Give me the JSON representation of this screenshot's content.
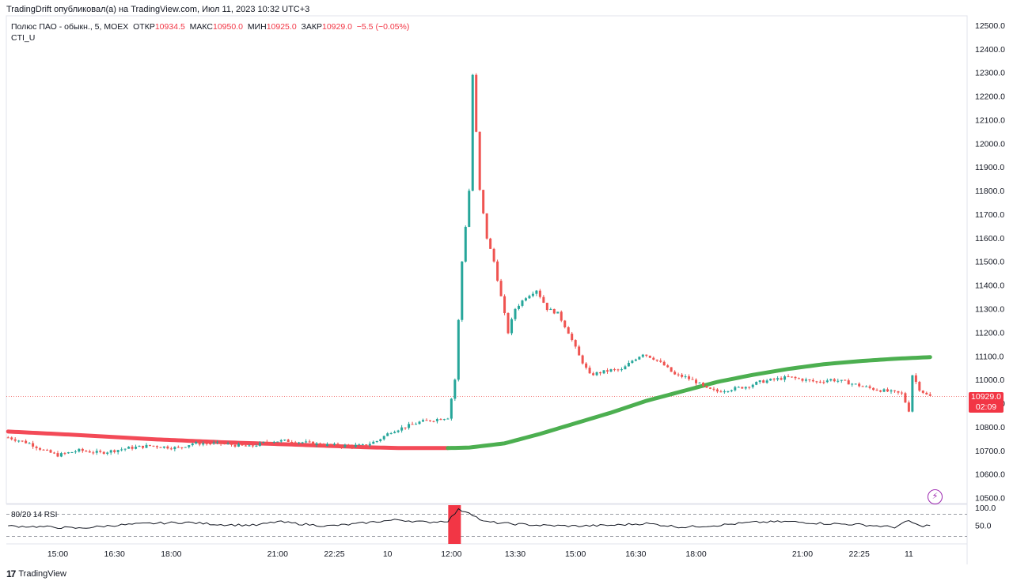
{
  "header": {
    "published": "TradingDrift опубликовал(а) на TradingView.com, Июл 11, 2023 10:32 UTC+3"
  },
  "legend": {
    "symbol": "Полюс ПАО - обыкн., 5, MOEX",
    "open_label": "ОТКР",
    "open_value": "10934.5",
    "high_label": "МАКС",
    "high_value": "10950.0",
    "low_label": "МИН",
    "low_value": "10925.0",
    "close_label": "ЗАКР",
    "close_value": "10929.0",
    "change": "−5.5 (−0.05%)",
    "indicator": "CTI_U"
  },
  "price_badge": {
    "price": "10929.0",
    "countdown": "02:09"
  },
  "rsi": {
    "label": "80/20 14 RSI",
    "upper": "100.0",
    "mid": "50.0"
  },
  "brand": {
    "name": "TradingView"
  },
  "colors": {
    "up": "#26a69a",
    "down": "#ef5350",
    "bull_line": "#4caf50",
    "bear_line": "#f23645",
    "rsi_flag": "#f23645"
  },
  "chart_data": {
    "type": "candlestick",
    "title": "",
    "y_axis": {
      "ticks": [
        10500.0,
        10600.0,
        10700.0,
        10800.0,
        10900.0,
        11000.0,
        11100.0,
        11200.0,
        11300.0,
        11400.0,
        11500.0,
        11600.0,
        11700.0,
        11800.0,
        11900.0,
        12000.0,
        12100.0,
        12200.0,
        12300.0,
        12400.0,
        12500.0
      ],
      "tick_labels": [
        "10500.0",
        "10600.0",
        "10700.0",
        "10800.0",
        "10900.0",
        "11000.0",
        "11100.0",
        "11200.0",
        "11300.0",
        "11400.0",
        "11500.0",
        "11600.0",
        "11700.0",
        "11800.0",
        "11900.0",
        "12000.0",
        "12100.0",
        "12200.0",
        "12300.0",
        "12400.0",
        "12500.0"
      ],
      "range": [
        10475,
        12540
      ]
    },
    "x_axis": {
      "tick_labels": [
        "15:00",
        "16:30",
        "18:00",
        "21:00",
        "22:25",
        "10",
        "12:00",
        "13:30",
        "15:00",
        "16:30",
        "18:00",
        "21:00",
        "22:25",
        "11"
      ],
      "tick_bar_index": [
        14,
        30,
        46,
        76,
        92,
        107,
        125,
        143,
        160,
        177,
        194,
        224,
        240,
        254
      ]
    },
    "last_price": 10929.0,
    "price_path": [
      [
        0,
        10755
      ],
      [
        6,
        10730
      ],
      [
        10,
        10700
      ],
      [
        14,
        10680
      ],
      [
        20,
        10700
      ],
      [
        26,
        10690
      ],
      [
        34,
        10710
      ],
      [
        40,
        10720
      ],
      [
        48,
        10710
      ],
      [
        52,
        10730
      ],
      [
        60,
        10730
      ],
      [
        68,
        10715
      ],
      [
        74,
        10740
      ],
      [
        80,
        10740
      ],
      [
        88,
        10725
      ],
      [
        94,
        10720
      ],
      [
        100,
        10720
      ],
      [
        104,
        10740
      ],
      [
        108,
        10780
      ],
      [
        112,
        10800
      ],
      [
        116,
        10820
      ],
      [
        120,
        10830
      ],
      [
        124,
        10840
      ],
      [
        126,
        11000
      ],
      [
        128,
        11500
      ],
      [
        130,
        11800
      ],
      [
        131,
        12290
      ],
      [
        133,
        11800
      ],
      [
        135,
        11600
      ],
      [
        137,
        11500
      ],
      [
        139,
        11350
      ],
      [
        141,
        11200
      ],
      [
        143,
        11300
      ],
      [
        146,
        11350
      ],
      [
        149,
        11380
      ],
      [
        152,
        11300
      ],
      [
        155,
        11280
      ],
      [
        158,
        11200
      ],
      [
        161,
        11100
      ],
      [
        164,
        11020
      ],
      [
        167,
        11030
      ],
      [
        170,
        11040
      ],
      [
        173,
        11040
      ],
      [
        176,
        11080
      ],
      [
        179,
        11110
      ],
      [
        182,
        11090
      ],
      [
        185,
        11060
      ],
      [
        188,
        11020
      ],
      [
        191,
        11010
      ],
      [
        194,
        10990
      ],
      [
        197,
        10960
      ],
      [
        200,
        10950
      ],
      [
        204,
        10960
      ],
      [
        208,
        10970
      ],
      [
        212,
        10990
      ],
      [
        216,
        11000
      ],
      [
        220,
        11010
      ],
      [
        224,
        11000
      ],
      [
        228,
        10990
      ],
      [
        232,
        11000
      ],
      [
        236,
        10990
      ],
      [
        240,
        10975
      ],
      [
        244,
        10960
      ],
      [
        248,
        10950
      ],
      [
        252,
        10940
      ],
      [
        254,
        10870
      ],
      [
        255,
        11020
      ],
      [
        257,
        10960
      ],
      [
        259,
        10935
      ],
      [
        260,
        10929
      ]
    ],
    "cti_line": {
      "points": [
        [
          0,
          10780
        ],
        [
          20,
          10765
        ],
        [
          40,
          10748
        ],
        [
          60,
          10735
        ],
        [
          80,
          10725
        ],
        [
          100,
          10714
        ],
        [
          110,
          10710
        ],
        [
          124,
          10710
        ],
        [
          130,
          10712
        ],
        [
          140,
          10730
        ],
        [
          150,
          10770
        ],
        [
          160,
          10815
        ],
        [
          170,
          10860
        ],
        [
          180,
          10910
        ],
        [
          190,
          10950
        ],
        [
          200,
          10990
        ],
        [
          210,
          11020
        ],
        [
          220,
          11045
        ],
        [
          230,
          11065
        ],
        [
          240,
          11078
        ],
        [
          250,
          11088
        ],
        [
          260,
          11095
        ]
      ],
      "bearish_until_index": 124
    },
    "rsi_series": [
      [
        0,
        48
      ],
      [
        10,
        46
      ],
      [
        20,
        42
      ],
      [
        30,
        50
      ],
      [
        40,
        55
      ],
      [
        50,
        58
      ],
      [
        60,
        52
      ],
      [
        70,
        50
      ],
      [
        76,
        60
      ],
      [
        82,
        54
      ],
      [
        90,
        48
      ],
      [
        96,
        52
      ],
      [
        104,
        60
      ],
      [
        110,
        65
      ],
      [
        118,
        58
      ],
      [
        124,
        62
      ],
      [
        127,
        92
      ],
      [
        130,
        85
      ],
      [
        134,
        60
      ],
      [
        140,
        55
      ],
      [
        150,
        50
      ],
      [
        160,
        48
      ],
      [
        170,
        50
      ],
      [
        180,
        55
      ],
      [
        190,
        45
      ],
      [
        200,
        50
      ],
      [
        210,
        58
      ],
      [
        220,
        60
      ],
      [
        230,
        55
      ],
      [
        240,
        52
      ],
      [
        250,
        45
      ],
      [
        254,
        62
      ],
      [
        257,
        48
      ],
      [
        260,
        50
      ]
    ]
  }
}
